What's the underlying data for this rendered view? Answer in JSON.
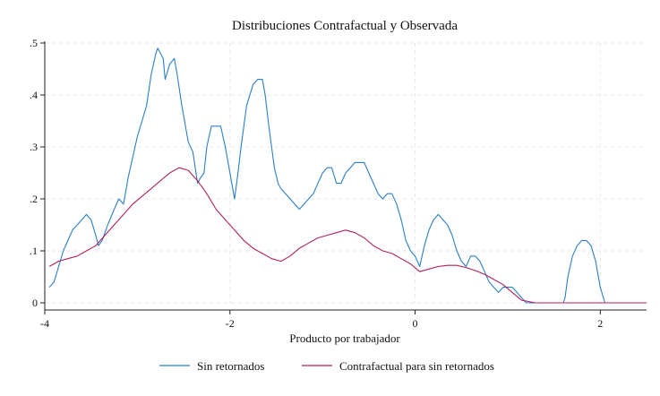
{
  "chart_data": {
    "type": "line",
    "title": "Distribuciones Contrafactual y Observada",
    "xlabel": "Producto por trabajador",
    "ylabel": "",
    "xlim": [
      -4,
      2.5
    ],
    "ylim": [
      0,
      0.5
    ],
    "xticks": [
      -4,
      -2,
      0,
      2
    ],
    "xtick_labels": [
      "-4",
      "-2",
      "0",
      "2"
    ],
    "yticks": [
      0,
      0.1,
      0.2,
      0.3,
      0.4,
      0.5
    ],
    "ytick_labels": [
      "0",
      ".1",
      ".2",
      ".3",
      ".4",
      ".5"
    ],
    "grid": true,
    "legend_position": "bottom",
    "series": [
      {
        "name": "Sin retornados",
        "color": "#2b7fc7",
        "x": [
          -3.95,
          -3.9,
          -3.85,
          -3.8,
          -3.75,
          -3.7,
          -3.65,
          -3.6,
          -3.55,
          -3.5,
          -3.45,
          -3.42,
          -3.38,
          -3.32,
          -3.25,
          -3.2,
          -3.15,
          -3.1,
          -3.05,
          -3.0,
          -2.95,
          -2.9,
          -2.85,
          -2.8,
          -2.78,
          -2.75,
          -2.72,
          -2.7,
          -2.65,
          -2.6,
          -2.57,
          -2.52,
          -2.48,
          -2.45,
          -2.4,
          -2.35,
          -2.32,
          -2.28,
          -2.25,
          -2.2,
          -2.15,
          -2.1,
          -2.05,
          -2.02,
          -1.98,
          -1.95,
          -1.92,
          -1.88,
          -1.82,
          -1.75,
          -1.7,
          -1.65,
          -1.62,
          -1.58,
          -1.52,
          -1.48,
          -1.45,
          -1.4,
          -1.35,
          -1.3,
          -1.25,
          -1.2,
          -1.15,
          -1.1,
          -1.05,
          -1.0,
          -0.95,
          -0.9,
          -0.85,
          -0.8,
          -0.75,
          -0.7,
          -0.65,
          -0.6,
          -0.55,
          -0.5,
          -0.45,
          -0.4,
          -0.35,
          -0.3,
          -0.25,
          -0.2,
          -0.15,
          -0.1,
          -0.05,
          0.0,
          0.05,
          0.1,
          0.15,
          0.2,
          0.25,
          0.3,
          0.35,
          0.4,
          0.45,
          0.5,
          0.55,
          0.6,
          0.65,
          0.7,
          0.75,
          0.8,
          0.85,
          0.9,
          0.95,
          1.0,
          1.05,
          1.1,
          1.15,
          1.2,
          1.3,
          1.4,
          1.5,
          1.6,
          1.62,
          1.65,
          1.7,
          1.75,
          1.8,
          1.85,
          1.9,
          1.95,
          2.0,
          2.05,
          2.2,
          2.4,
          2.5
        ],
        "y": [
          0.03,
          0.04,
          0.07,
          0.1,
          0.12,
          0.14,
          0.15,
          0.16,
          0.17,
          0.16,
          0.13,
          0.11,
          0.12,
          0.15,
          0.18,
          0.2,
          0.19,
          0.24,
          0.28,
          0.32,
          0.35,
          0.38,
          0.44,
          0.48,
          0.49,
          0.48,
          0.47,
          0.43,
          0.46,
          0.47,
          0.44,
          0.38,
          0.34,
          0.31,
          0.29,
          0.23,
          0.24,
          0.25,
          0.3,
          0.34,
          0.34,
          0.34,
          0.3,
          0.27,
          0.23,
          0.2,
          0.24,
          0.3,
          0.38,
          0.42,
          0.43,
          0.43,
          0.4,
          0.34,
          0.26,
          0.23,
          0.22,
          0.21,
          0.2,
          0.19,
          0.18,
          0.19,
          0.2,
          0.21,
          0.23,
          0.25,
          0.26,
          0.26,
          0.23,
          0.23,
          0.25,
          0.26,
          0.27,
          0.27,
          0.27,
          0.25,
          0.23,
          0.21,
          0.2,
          0.21,
          0.21,
          0.19,
          0.16,
          0.12,
          0.1,
          0.09,
          0.07,
          0.11,
          0.14,
          0.16,
          0.17,
          0.16,
          0.15,
          0.13,
          0.1,
          0.08,
          0.07,
          0.09,
          0.09,
          0.08,
          0.06,
          0.04,
          0.03,
          0.02,
          0.03,
          0.03,
          0.03,
          0.02,
          0.01,
          0.0,
          0.0,
          0.0,
          0.0,
          0.0,
          0.01,
          0.05,
          0.09,
          0.11,
          0.12,
          0.12,
          0.11,
          0.08,
          0.03,
          0.0,
          0.0,
          0.0,
          0.0
        ]
      },
      {
        "name": "Contrafactual para sin retornados",
        "color": "#b0205e",
        "x": [
          -3.95,
          -3.85,
          -3.75,
          -3.65,
          -3.55,
          -3.45,
          -3.35,
          -3.25,
          -3.15,
          -3.05,
          -2.95,
          -2.85,
          -2.75,
          -2.65,
          -2.55,
          -2.45,
          -2.35,
          -2.25,
          -2.15,
          -2.05,
          -1.95,
          -1.85,
          -1.75,
          -1.65,
          -1.55,
          -1.45,
          -1.35,
          -1.25,
          -1.15,
          -1.05,
          -0.95,
          -0.85,
          -0.75,
          -0.65,
          -0.55,
          -0.45,
          -0.35,
          -0.25,
          -0.15,
          -0.05,
          0.05,
          0.15,
          0.25,
          0.35,
          0.45,
          0.55,
          0.65,
          0.75,
          0.85,
          0.95,
          1.05,
          1.15,
          1.3,
          1.5,
          1.7,
          1.9,
          2.1,
          2.3,
          2.5
        ],
        "y": [
          0.07,
          0.08,
          0.085,
          0.09,
          0.1,
          0.11,
          0.13,
          0.15,
          0.17,
          0.19,
          0.205,
          0.22,
          0.235,
          0.25,
          0.26,
          0.255,
          0.235,
          0.21,
          0.18,
          0.16,
          0.14,
          0.12,
          0.105,
          0.095,
          0.085,
          0.08,
          0.09,
          0.105,
          0.115,
          0.125,
          0.13,
          0.135,
          0.14,
          0.135,
          0.125,
          0.11,
          0.1,
          0.095,
          0.085,
          0.075,
          0.06,
          0.065,
          0.07,
          0.072,
          0.072,
          0.068,
          0.062,
          0.055,
          0.045,
          0.035,
          0.02,
          0.005,
          0.0,
          0.0,
          0.0,
          0.0,
          0.0,
          0.0,
          0.0
        ]
      }
    ]
  }
}
